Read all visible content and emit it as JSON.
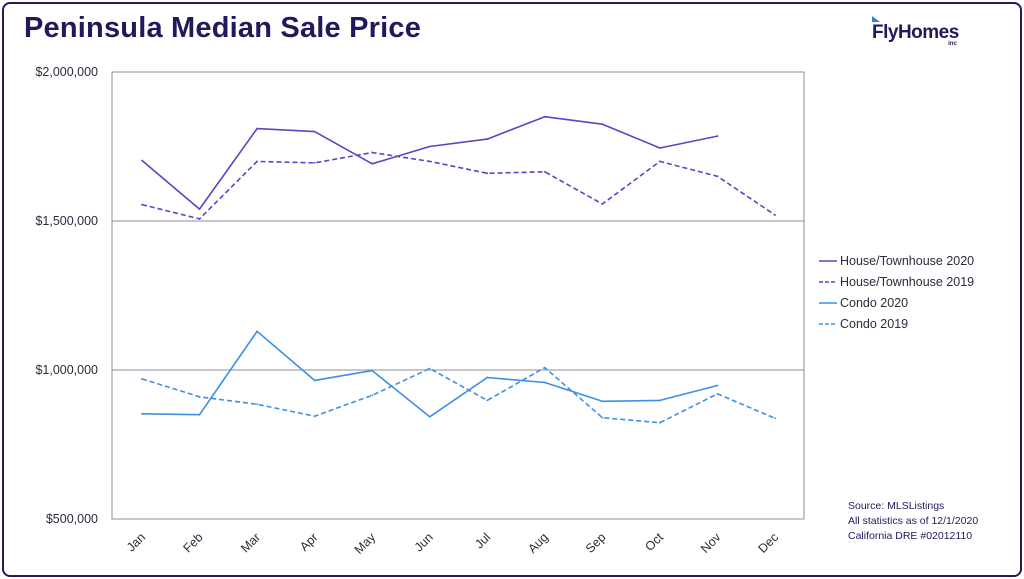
{
  "header": {
    "title": "Peninsula Median Sale Price",
    "logo_text": "FlyHomes",
    "logo_sub": "inc"
  },
  "footer": {
    "source_lines": [
      "Source: MLSListings",
      "All statistics as of 12/1/2020",
      "California DRE #02012110"
    ]
  },
  "chart_data": {
    "type": "line",
    "title": "Peninsula Median Sale Price",
    "categories": [
      "Jan",
      "Feb",
      "Mar",
      "Apr",
      "May",
      "Jun",
      "Jul",
      "Aug",
      "Sep",
      "Oct",
      "Nov",
      "Dec"
    ],
    "y_ticks": [
      500000,
      1000000,
      1500000,
      2000000
    ],
    "y_tick_labels": [
      "$500,000",
      "$1,000,000",
      "$1,500,000",
      "$2,000,000"
    ],
    "ylim": [
      500000,
      2000000
    ],
    "gridlines": [
      1000000,
      1500000
    ],
    "legend_position": "right",
    "series": [
      {
        "name": "House/Townhouse 2020",
        "color": "#5a45c4",
        "dashed": false,
        "values": [
          1703000,
          1540000,
          1810000,
          1800000,
          1692000,
          1750000,
          1775000,
          1850000,
          1825000,
          1745000,
          1785000,
          null
        ]
      },
      {
        "name": "House/Townhouse 2019",
        "color": "#5a45c4",
        "dashed": true,
        "values": [
          1555000,
          1507000,
          1700000,
          1695000,
          1730000,
          1700000,
          1660000,
          1665000,
          1557000,
          1700000,
          1650000,
          1520000
        ]
      },
      {
        "name": "Condo 2020",
        "color": "#3c8fe6",
        "dashed": false,
        "values": [
          853000,
          850000,
          1130000,
          965000,
          998000,
          843000,
          975000,
          958000,
          895000,
          898000,
          948000,
          null
        ]
      },
      {
        "name": "Condo 2019",
        "color": "#3c8fe6",
        "dashed": true,
        "values": [
          970000,
          910000,
          885000,
          845000,
          915000,
          1005000,
          898000,
          1008000,
          840000,
          823000,
          920000,
          838000
        ]
      }
    ]
  }
}
